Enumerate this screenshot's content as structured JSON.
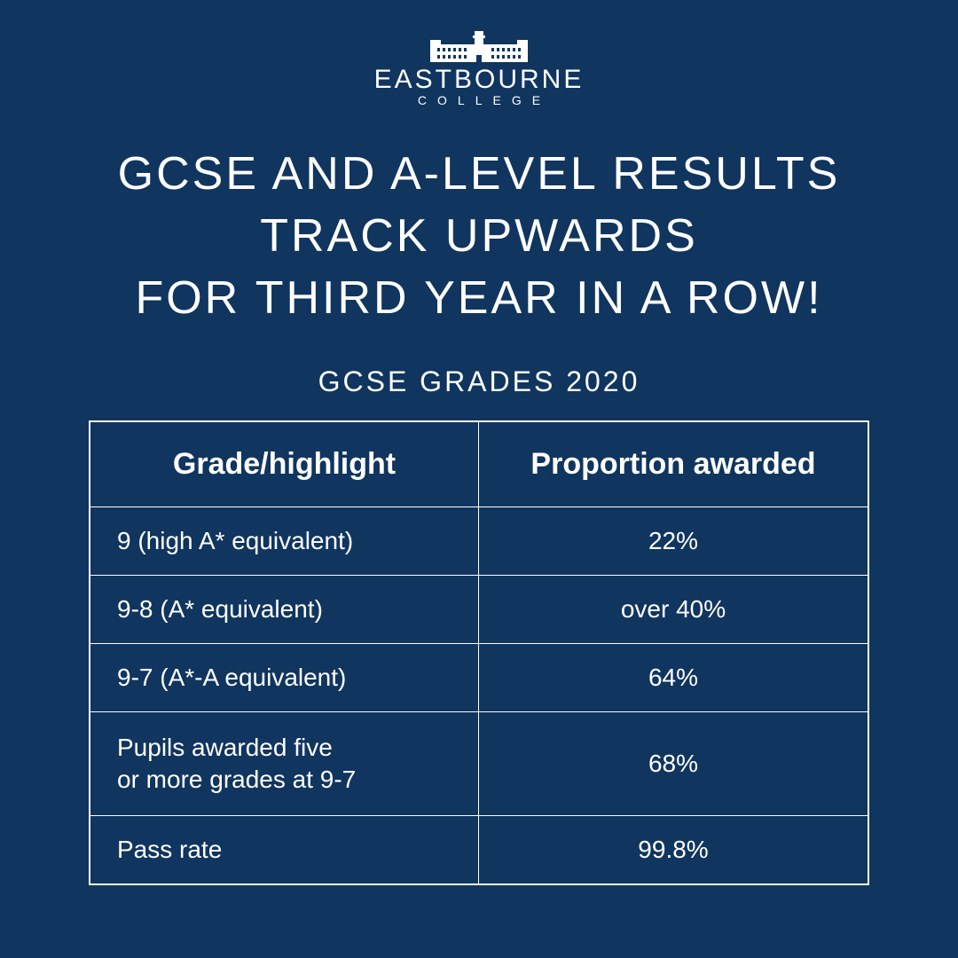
{
  "logo": {
    "name": "EASTBOURNE",
    "sub": "COLLEGE"
  },
  "headline_line1": "GCSE AND A-LEVEL RESULTS",
  "headline_line2": "TRACK UPWARDS",
  "headline_line3": "FOR THIRD YEAR IN A ROW!",
  "subheading": "GCSE GRADES 2020",
  "table": {
    "header_left": "Grade/highlight",
    "header_right": "Proportion awarded",
    "rows": [
      {
        "label": "9 (high A* equivalent)",
        "value": "22%"
      },
      {
        "label": "9-8 (A* equivalent)",
        "value": "over 40%"
      },
      {
        "label": "9-7 (A*-A equivalent)",
        "value": "64%"
      },
      {
        "label": "Pupils awarded five\n or more grades at 9-7",
        "value": "68%"
      },
      {
        "label": "Pass rate",
        "value": "99.8%"
      }
    ]
  },
  "colors": {
    "background": "#10355f",
    "text": "#ffffff",
    "border": "#ffffff"
  }
}
